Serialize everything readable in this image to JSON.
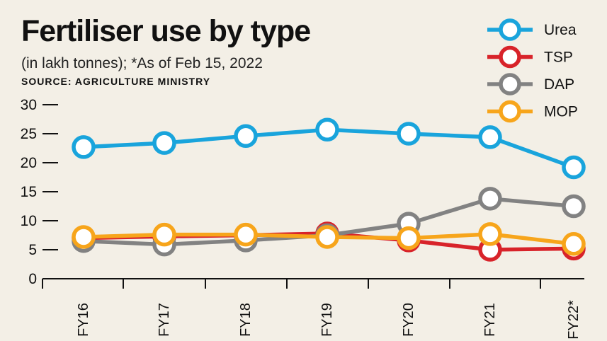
{
  "chart_data": {
    "type": "line",
    "title": "Fertiliser use by type",
    "subtitle": "(in lakh tonnes); *As of Feb 15, 2022",
    "source": "SOURCE: AGRICULTURE MINISTRY",
    "categories": [
      "FY16",
      "FY17",
      "FY18",
      "FY19",
      "FY20",
      "FY21",
      "FY22*"
    ],
    "y_ticks": [
      "0",
      "5",
      "10",
      "15",
      "20",
      "25",
      "30"
    ],
    "ylim": [
      0,
      30
    ],
    "legend_position": "top-right",
    "grid": false,
    "series": [
      {
        "name": "Urea",
        "color": "#19a4dc",
        "values": [
          22.7,
          23.4,
          24.6,
          25.7,
          25.0,
          24.4,
          19.2
        ]
      },
      {
        "name": "TSP",
        "color": "#d8232a",
        "values": [
          7.0,
          7.3,
          7.5,
          7.8,
          6.6,
          5.0,
          5.2
        ]
      },
      {
        "name": "DAP",
        "color": "#828282",
        "values": [
          6.5,
          5.9,
          6.6,
          7.5,
          9.5,
          13.8,
          12.5
        ]
      },
      {
        "name": "MOP",
        "color": "#f7a51b",
        "values": [
          7.2,
          7.6,
          7.6,
          7.2,
          7.0,
          7.7,
          6.0
        ]
      }
    ]
  }
}
